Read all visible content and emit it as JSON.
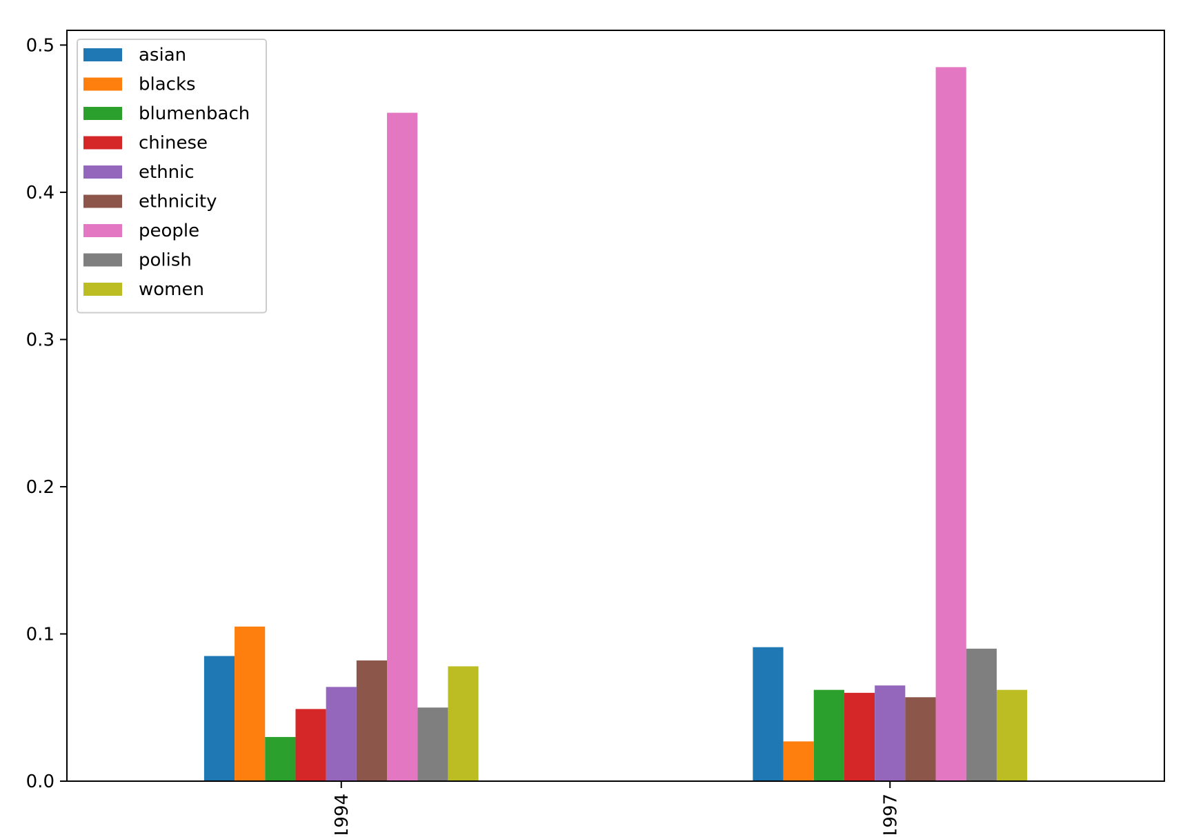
{
  "chart_data": {
    "type": "bar",
    "categories": [
      "1994",
      "1997"
    ],
    "series": [
      {
        "name": "asian",
        "color": "#1f77b4",
        "values": [
          0.085,
          0.091
        ]
      },
      {
        "name": "blacks",
        "color": "#ff7f0e",
        "values": [
          0.105,
          0.027
        ]
      },
      {
        "name": "blumenbach",
        "color": "#2ca02c",
        "values": [
          0.03,
          0.062
        ]
      },
      {
        "name": "chinese",
        "color": "#d62728",
        "values": [
          0.049,
          0.06
        ]
      },
      {
        "name": "ethnic",
        "color": "#9467bd",
        "values": [
          0.064,
          0.065
        ]
      },
      {
        "name": "ethnicity",
        "color": "#8c564b",
        "values": [
          0.082,
          0.057
        ]
      },
      {
        "name": "people",
        "color": "#e377c2",
        "values": [
          0.454,
          0.485
        ]
      },
      {
        "name": "polish",
        "color": "#7f7f7f",
        "values": [
          0.05,
          0.09
        ]
      },
      {
        "name": "women",
        "color": "#bcbd22",
        "values": [
          0.078,
          0.062
        ]
      }
    ],
    "title": "",
    "xlabel": "",
    "ylabel": "",
    "ylim": [
      0,
      0.51
    ],
    "yticks": [
      "0.0",
      "0.1",
      "0.2",
      "0.3",
      "0.4",
      "0.5"
    ],
    "ytick_values": [
      0,
      0.1,
      0.2,
      0.3,
      0.4,
      0.5
    ],
    "xtick_rotation": "vertical",
    "grid": false,
    "legend_position": "upper-left"
  }
}
